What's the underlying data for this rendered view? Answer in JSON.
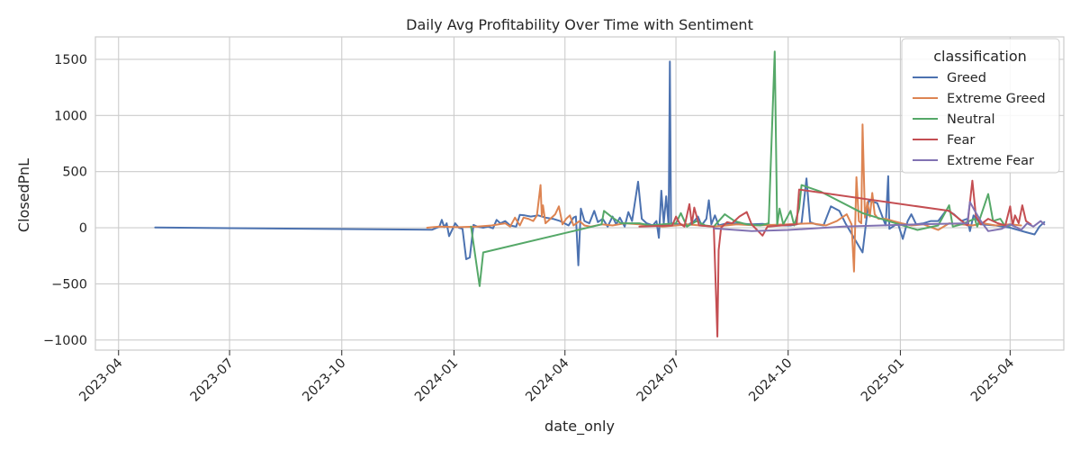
{
  "chart_data": {
    "type": "line",
    "title": "Daily Avg Profitability Over Time with Sentiment",
    "xlabel": "date_only",
    "ylabel": "ClosedPnL",
    "xlim": [
      "2023-03-13",
      "2025-05-15"
    ],
    "ylim": [
      -1090,
      1700
    ],
    "x_ticks": [
      "2023-04-01",
      "2023-07-01",
      "2023-10-01",
      "2024-01-01",
      "2024-04-01",
      "2024-07-01",
      "2024-10-01",
      "2025-01-01",
      "2025-04-01"
    ],
    "x_tick_labels": [
      "2023-04",
      "2023-07",
      "2023-10",
      "2024-01",
      "2024-04",
      "2024-07",
      "2024-10",
      "2025-01",
      "2025-04"
    ],
    "y_ticks": [
      -1000,
      -500,
      0,
      500,
      1000,
      1500
    ],
    "y_tick_labels": [
      "−1000",
      "−500",
      "0",
      "500",
      "1000",
      "1500"
    ],
    "grid": true,
    "legend": {
      "title": "classification",
      "placement": "upper right"
    },
    "series": [
      {
        "name": "Greed",
        "color": "#4c72b0",
        "points": [
          [
            "2023-05-01",
            2
          ],
          [
            "2023-12-14",
            -18
          ],
          [
            "2023-12-20",
            10
          ],
          [
            "2023-12-22",
            70
          ],
          [
            "2023-12-24",
            5
          ],
          [
            "2023-12-26",
            40
          ],
          [
            "2023-12-28",
            -75
          ],
          [
            "2023-12-30",
            -30
          ],
          [
            "2024-01-02",
            40
          ],
          [
            "2024-01-05",
            0
          ],
          [
            "2024-01-08",
            -10
          ],
          [
            "2024-01-11",
            -280
          ],
          [
            "2024-01-14",
            -265
          ],
          [
            "2024-01-17",
            25
          ],
          [
            "2024-01-20",
            10
          ],
          [
            "2024-01-25",
            0
          ],
          [
            "2024-01-29",
            10
          ],
          [
            "2024-02-02",
            -5
          ],
          [
            "2024-02-05",
            70
          ],
          [
            "2024-02-08",
            40
          ],
          [
            "2024-02-12",
            60
          ],
          [
            "2024-02-16",
            20
          ],
          [
            "2024-02-21",
            10
          ],
          [
            "2024-02-24",
            115
          ],
          [
            "2024-02-28",
            110
          ],
          [
            "2024-03-04",
            100
          ],
          [
            "2024-03-10",
            110
          ],
          [
            "2024-03-16",
            90
          ],
          [
            "2024-03-22",
            80
          ],
          [
            "2024-03-28",
            60
          ],
          [
            "2024-04-04",
            20
          ],
          [
            "2024-04-08",
            90
          ],
          [
            "2024-04-10",
            100
          ],
          [
            "2024-04-12",
            -335
          ],
          [
            "2024-04-14",
            170
          ],
          [
            "2024-04-17",
            60
          ],
          [
            "2024-04-21",
            40
          ],
          [
            "2024-04-25",
            150
          ],
          [
            "2024-04-28",
            50
          ],
          [
            "2024-05-02",
            80
          ],
          [
            "2024-05-06",
            10
          ],
          [
            "2024-05-10",
            100
          ],
          [
            "2024-05-13",
            30
          ],
          [
            "2024-05-16",
            90
          ],
          [
            "2024-05-20",
            10
          ],
          [
            "2024-05-23",
            140
          ],
          [
            "2024-05-26",
            60
          ],
          [
            "2024-05-31",
            410
          ],
          [
            "2024-06-03",
            80
          ],
          [
            "2024-06-07",
            40
          ],
          [
            "2024-06-12",
            20
          ],
          [
            "2024-06-15",
            60
          ],
          [
            "2024-06-17",
            -90
          ],
          [
            "2024-06-19",
            330
          ],
          [
            "2024-06-21",
            40
          ],
          [
            "2024-06-23",
            280
          ],
          [
            "2024-06-25",
            20
          ],
          [
            "2024-06-26",
            1480
          ],
          [
            "2024-06-27",
            40
          ],
          [
            "2024-07-03",
            30
          ],
          [
            "2024-07-10",
            20
          ],
          [
            "2024-07-16",
            60
          ],
          [
            "2024-07-19",
            100
          ],
          [
            "2024-07-22",
            20
          ],
          [
            "2024-07-26",
            80
          ],
          [
            "2024-07-28",
            245
          ],
          [
            "2024-07-30",
            30
          ],
          [
            "2024-08-02",
            110
          ],
          [
            "2024-08-05",
            20
          ],
          [
            "2024-08-10",
            35
          ],
          [
            "2024-08-20",
            40
          ],
          [
            "2024-09-01",
            30
          ],
          [
            "2024-09-10",
            35
          ],
          [
            "2024-09-20",
            20
          ],
          [
            "2024-10-03",
            20
          ],
          [
            "2024-10-12",
            40
          ],
          [
            "2024-10-16",
            440
          ],
          [
            "2024-10-19",
            50
          ],
          [
            "2024-10-24",
            30
          ],
          [
            "2024-10-30",
            20
          ],
          [
            "2024-11-05",
            190
          ],
          [
            "2024-11-12",
            150
          ],
          [
            "2024-11-17",
            40
          ],
          [
            "2024-12-01",
            -220
          ],
          [
            "2024-12-06",
            240
          ],
          [
            "2024-12-13",
            220
          ],
          [
            "2024-12-20",
            20
          ],
          [
            "2024-12-22",
            460
          ],
          [
            "2024-12-23",
            -10
          ],
          [
            "2024-12-30",
            40
          ],
          [
            "2025-01-03",
            -100
          ],
          [
            "2025-01-07",
            60
          ],
          [
            "2025-01-10",
            120
          ],
          [
            "2025-01-14",
            30
          ],
          [
            "2025-01-20",
            40
          ],
          [
            "2025-01-26",
            60
          ],
          [
            "2025-02-01",
            60
          ],
          [
            "2025-02-08",
            160
          ],
          [
            "2025-02-14",
            120
          ],
          [
            "2025-02-20",
            60
          ],
          [
            "2025-02-25",
            80
          ],
          [
            "2025-02-27",
            -30
          ],
          [
            "2025-03-02",
            110
          ],
          [
            "2025-03-08",
            30
          ],
          [
            "2025-03-20",
            20
          ],
          [
            "2025-04-01",
            0
          ],
          [
            "2025-04-14",
            -40
          ],
          [
            "2025-04-21",
            -60
          ],
          [
            "2025-04-25",
            10
          ],
          [
            "2025-04-29",
            50
          ]
        ]
      },
      {
        "name": "Extreme Greed",
        "color": "#dd8452",
        "points": [
          [
            "2023-12-10",
            0
          ],
          [
            "2023-12-20",
            10
          ],
          [
            "2024-01-05",
            5
          ],
          [
            "2024-01-20",
            10
          ],
          [
            "2024-02-01",
            20
          ],
          [
            "2024-02-12",
            40
          ],
          [
            "2024-02-16",
            10
          ],
          [
            "2024-02-20",
            90
          ],
          [
            "2024-02-24",
            20
          ],
          [
            "2024-02-27",
            90
          ],
          [
            "2024-03-02",
            80
          ],
          [
            "2024-03-06",
            60
          ],
          [
            "2024-03-09",
            110
          ],
          [
            "2024-03-12",
            380
          ],
          [
            "2024-03-13",
            100
          ],
          [
            "2024-03-14",
            200
          ],
          [
            "2024-03-16",
            40
          ],
          [
            "2024-03-20",
            80
          ],
          [
            "2024-03-24",
            120
          ],
          [
            "2024-03-27",
            190
          ],
          [
            "2024-03-30",
            30
          ],
          [
            "2024-04-02",
            80
          ],
          [
            "2024-04-05",
            110
          ],
          [
            "2024-04-08",
            20
          ],
          [
            "2024-04-13",
            60
          ],
          [
            "2024-04-17",
            20
          ],
          [
            "2024-04-22",
            10
          ],
          [
            "2024-05-01",
            30
          ],
          [
            "2024-05-10",
            20
          ],
          [
            "2024-05-20",
            40
          ],
          [
            "2024-06-01",
            30
          ],
          [
            "2024-06-10",
            20
          ],
          [
            "2024-06-20",
            10
          ],
          [
            "2024-07-01",
            20
          ],
          [
            "2024-07-10",
            30
          ],
          [
            "2024-08-01",
            10
          ],
          [
            "2024-08-20",
            30
          ],
          [
            "2024-09-05",
            20
          ],
          [
            "2024-10-01",
            30
          ],
          [
            "2024-10-20",
            40
          ],
          [
            "2024-11-01",
            20
          ],
          [
            "2024-11-10",
            60
          ],
          [
            "2024-11-18",
            120
          ],
          [
            "2024-11-22",
            30
          ],
          [
            "2024-11-24",
            -390
          ],
          [
            "2024-11-26",
            450
          ],
          [
            "2024-11-28",
            60
          ],
          [
            "2024-11-30",
            40
          ],
          [
            "2024-12-01",
            920
          ],
          [
            "2024-12-03",
            90
          ],
          [
            "2024-12-05",
            230
          ],
          [
            "2024-12-07",
            100
          ],
          [
            "2024-12-09",
            310
          ],
          [
            "2024-12-11",
            120
          ],
          [
            "2024-12-14",
            80
          ],
          [
            "2024-12-20",
            80
          ],
          [
            "2024-12-26",
            60
          ],
          [
            "2025-01-02",
            40
          ],
          [
            "2025-01-10",
            20
          ],
          [
            "2025-01-20",
            30
          ],
          [
            "2025-02-01",
            -20
          ],
          [
            "2025-02-10",
            40
          ],
          [
            "2025-02-20",
            30
          ],
          [
            "2025-03-01",
            20
          ],
          [
            "2025-03-10",
            40
          ],
          [
            "2025-03-20",
            20
          ],
          [
            "2025-04-01",
            30
          ],
          [
            "2025-04-10",
            20
          ]
        ]
      },
      {
        "name": "Neutral",
        "color": "#55a868",
        "points": [
          [
            "2024-01-15",
            10
          ],
          [
            "2024-01-22",
            -520
          ],
          [
            "2024-01-25",
            -220
          ],
          [
            "2024-05-01",
            30
          ],
          [
            "2024-05-03",
            150
          ],
          [
            "2024-05-10",
            90
          ],
          [
            "2024-05-17",
            40
          ],
          [
            "2024-06-01",
            40
          ],
          [
            "2024-06-10",
            20
          ],
          [
            "2024-06-20",
            30
          ],
          [
            "2024-07-01",
            40
          ],
          [
            "2024-07-05",
            130
          ],
          [
            "2024-07-10",
            10
          ],
          [
            "2024-07-18",
            60
          ],
          [
            "2024-07-25",
            20
          ],
          [
            "2024-08-01",
            10
          ],
          [
            "2024-08-10",
            120
          ],
          [
            "2024-08-18",
            60
          ],
          [
            "2024-08-28",
            30
          ],
          [
            "2024-09-08",
            20
          ],
          [
            "2024-09-15",
            40
          ],
          [
            "2024-09-20",
            1570
          ],
          [
            "2024-09-22",
            20
          ],
          [
            "2024-09-24",
            170
          ],
          [
            "2024-09-27",
            30
          ],
          [
            "2024-10-03",
            150
          ],
          [
            "2024-10-06",
            20
          ],
          [
            "2024-10-10",
            170
          ],
          [
            "2024-10-12",
            380
          ],
          [
            "2024-10-28",
            320
          ],
          [
            "2024-12-01",
            130
          ],
          [
            "2025-01-15",
            -20
          ],
          [
            "2025-02-01",
            20
          ],
          [
            "2025-02-10",
            200
          ],
          [
            "2025-02-13",
            10
          ],
          [
            "2025-02-20",
            30
          ],
          [
            "2025-03-03",
            80
          ],
          [
            "2025-03-05",
            10
          ],
          [
            "2025-03-14",
            300
          ],
          [
            "2025-03-18",
            60
          ],
          [
            "2025-03-24",
            80
          ],
          [
            "2025-03-28",
            10
          ],
          [
            "2025-04-01",
            20
          ]
        ]
      },
      {
        "name": "Fear",
        "color": "#c44e52",
        "points": [
          [
            "2024-06-01",
            10
          ],
          [
            "2024-06-28",
            20
          ],
          [
            "2024-07-01",
            100
          ],
          [
            "2024-07-04",
            40
          ],
          [
            "2024-07-08",
            10
          ],
          [
            "2024-07-12",
            210
          ],
          [
            "2024-07-14",
            30
          ],
          [
            "2024-07-16",
            180
          ],
          [
            "2024-07-20",
            20
          ],
          [
            "2024-08-01",
            10
          ],
          [
            "2024-08-04",
            -970
          ],
          [
            "2024-08-05",
            -200
          ],
          [
            "2024-08-07",
            0
          ],
          [
            "2024-08-12",
            50
          ],
          [
            "2024-08-16",
            40
          ],
          [
            "2024-08-22",
            100
          ],
          [
            "2024-08-28",
            140
          ],
          [
            "2024-09-01",
            30
          ],
          [
            "2024-09-10",
            -70
          ],
          [
            "2024-09-14",
            10
          ],
          [
            "2024-10-08",
            30
          ],
          [
            "2024-10-10",
            340
          ],
          [
            "2025-02-10",
            150
          ],
          [
            "2025-02-25",
            20
          ],
          [
            "2025-03-01",
            420
          ],
          [
            "2025-03-04",
            100
          ],
          [
            "2025-03-08",
            30
          ],
          [
            "2025-03-14",
            80
          ],
          [
            "2025-03-22",
            40
          ],
          [
            "2025-03-28",
            20
          ],
          [
            "2025-04-01",
            190
          ],
          [
            "2025-04-03",
            20
          ],
          [
            "2025-04-05",
            110
          ],
          [
            "2025-04-08",
            40
          ],
          [
            "2025-04-11",
            200
          ],
          [
            "2025-04-14",
            60
          ],
          [
            "2025-04-18",
            30
          ]
        ]
      },
      {
        "name": "Extreme Fear",
        "color": "#8172b2",
        "points": [
          [
            "2024-08-01",
            -5
          ],
          [
            "2024-09-01",
            -30
          ],
          [
            "2024-10-01",
            -20
          ],
          [
            "2024-11-15",
            10
          ],
          [
            "2025-01-15",
            30
          ],
          [
            "2025-02-25",
            40
          ],
          [
            "2025-02-27",
            230
          ],
          [
            "2025-03-03",
            150
          ],
          [
            "2025-03-08",
            60
          ],
          [
            "2025-03-14",
            -30
          ],
          [
            "2025-03-25",
            -10
          ],
          [
            "2025-04-01",
            30
          ],
          [
            "2025-04-07",
            0
          ],
          [
            "2025-04-10",
            -20
          ],
          [
            "2025-04-15",
            40
          ],
          [
            "2025-04-20",
            10
          ],
          [
            "2025-04-26",
            60
          ],
          [
            "2025-04-29",
            30
          ]
        ]
      }
    ]
  }
}
